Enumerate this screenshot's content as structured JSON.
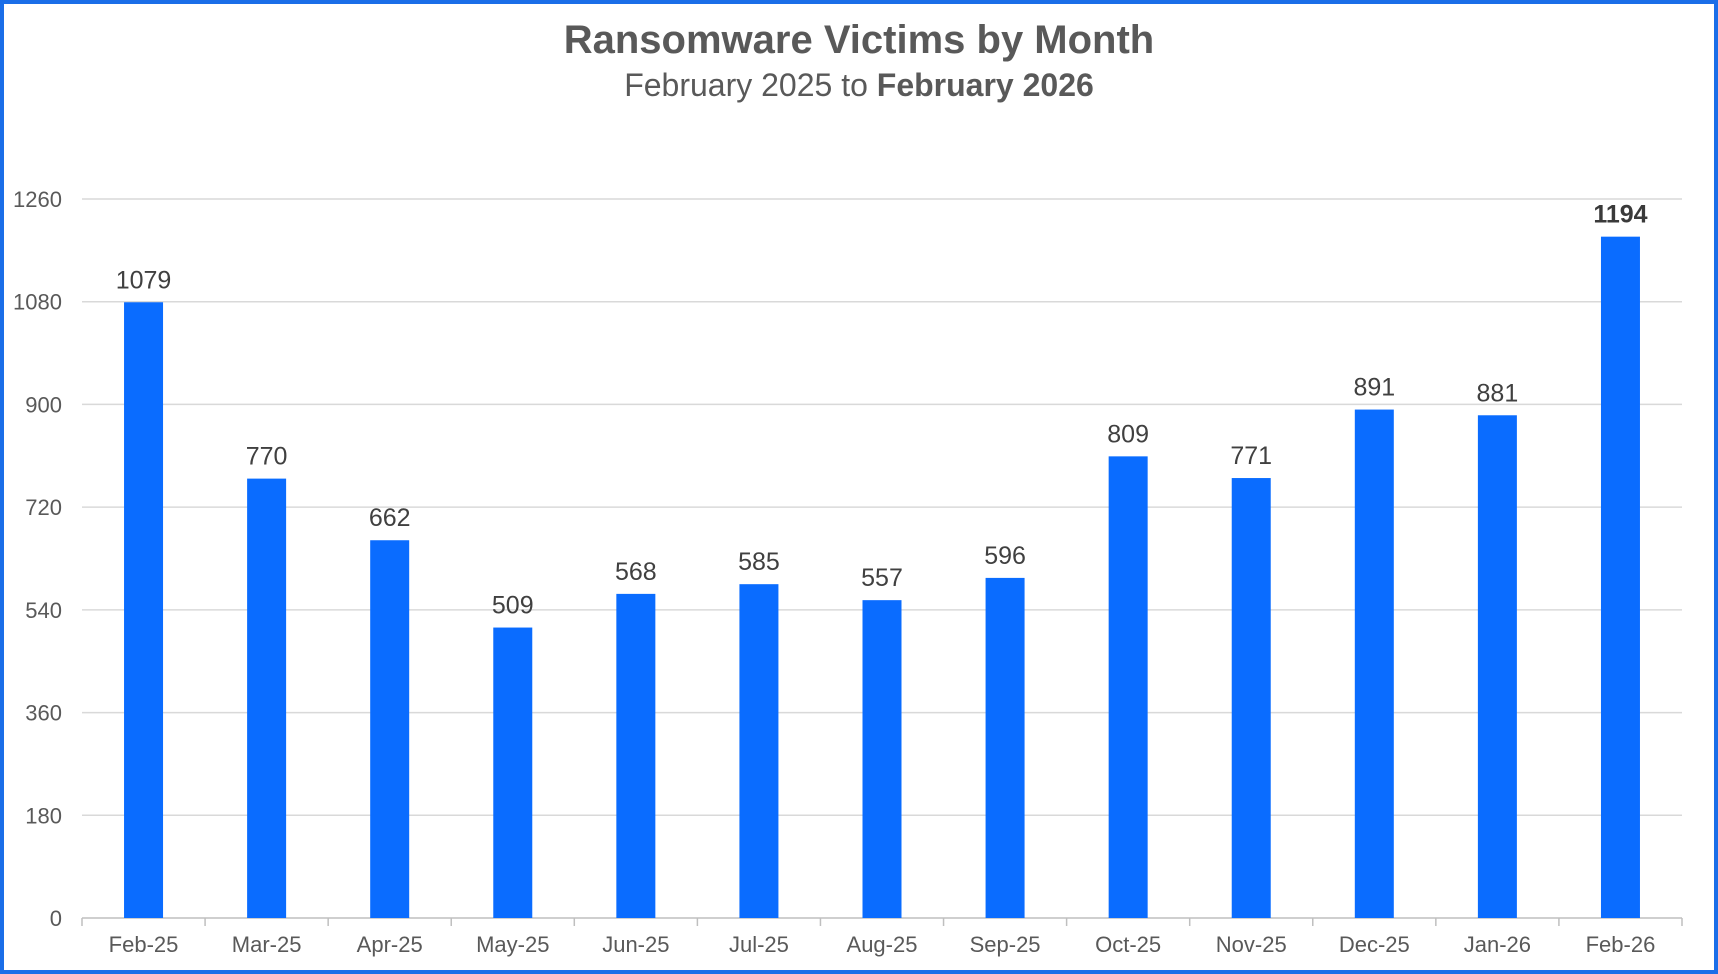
{
  "chart_data": {
    "type": "bar",
    "title": "Ransomware Victims by Month",
    "subtitle_prefix": "February 2025 to ",
    "subtitle_emphasis": "February 2026",
    "categories": [
      "Feb-25",
      "Mar-25",
      "Apr-25",
      "May-25",
      "Jun-25",
      "Jul-25",
      "Aug-25",
      "Sep-25",
      "Oct-25",
      "Nov-25",
      "Dec-25",
      "Jan-26",
      "Feb-26"
    ],
    "values": [
      1079,
      770,
      662,
      509,
      568,
      585,
      557,
      596,
      809,
      771,
      891,
      881,
      1194
    ],
    "emphasized_label_index": 12,
    "xlabel": "",
    "ylabel": "",
    "ylim": [
      0,
      1260
    ],
    "yticks": [
      0,
      180,
      360,
      540,
      720,
      900,
      1080,
      1260
    ],
    "grid": true,
    "legend": "none",
    "colors": {
      "bar": "#0a6cff",
      "frame": "#1a6ee8",
      "text": "#595959"
    }
  }
}
